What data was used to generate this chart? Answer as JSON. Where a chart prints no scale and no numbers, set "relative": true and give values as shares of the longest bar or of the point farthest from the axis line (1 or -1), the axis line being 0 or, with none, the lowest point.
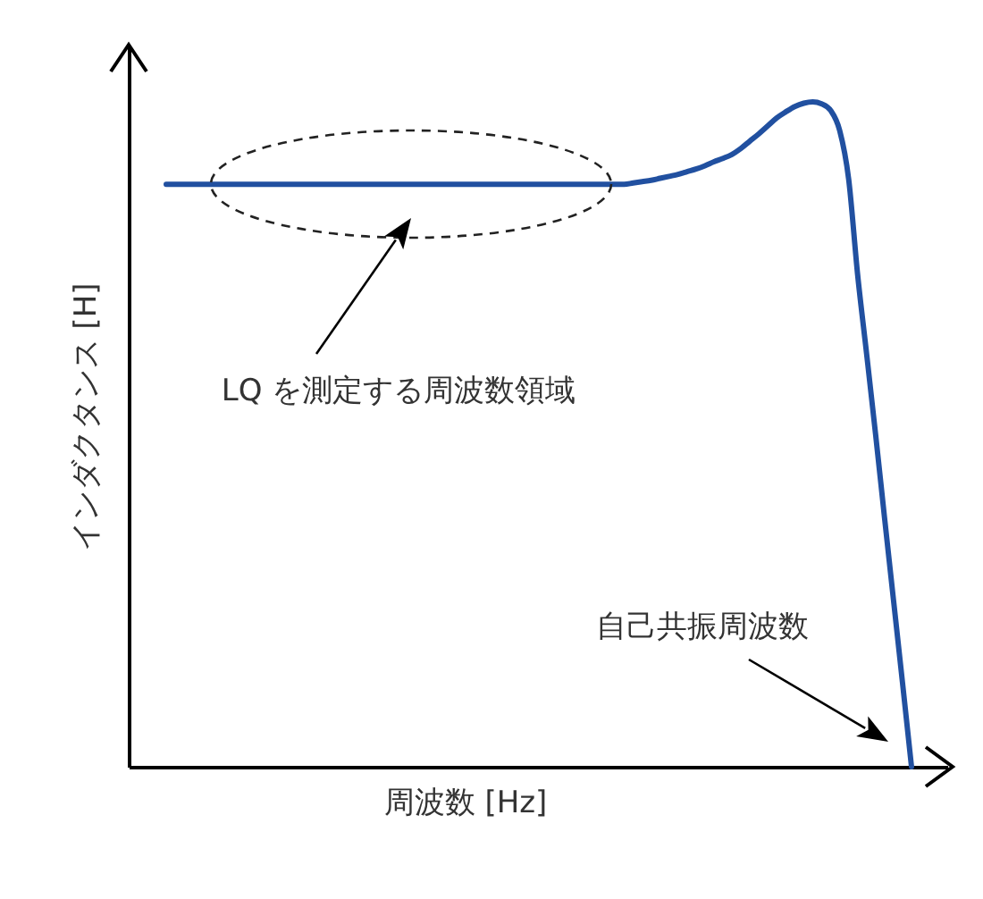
{
  "chart_data": {
    "type": "line",
    "xlabel": "周波数 [Hz]",
    "ylabel": "インダクタンス [H]",
    "annotations": [
      "LQ を測定する周波数領域",
      "自己共振周波数"
    ],
    "relative": true,
    "categories": [
      null,
      null,
      null,
      null,
      null,
      null,
      null,
      null,
      null,
      null,
      null,
      null,
      null,
      null,
      null,
      null,
      null,
      null,
      null,
      null,
      null,
      null,
      null,
      null,
      null,
      null,
      null,
      null,
      null,
      null,
      null,
      null,
      null,
      null,
      null,
      null,
      null,
      null,
      null,
      null,
      null,
      null,
      null,
      null,
      null,
      null,
      null,
      null,
      null,
      null,
      null,
      null,
      null,
      null,
      null,
      null,
      null,
      null,
      null,
      null,
      null,
      null,
      null,
      null,
      null,
      null,
      null,
      null,
      null,
      null,
      null,
      null,
      null,
      null,
      null,
      null,
      null,
      null,
      null,
      null,
      null,
      null,
      null,
      null
    ],
    "series": [
      {
        "color": "#2150a0",
        "values": [
          0.876,
          0.876,
          0.876,
          0.876,
          0.876,
          0.876,
          0.876,
          0.876,
          0.876,
          0.876,
          0.876,
          0.876,
          0.876,
          0.876,
          0.876,
          0.876,
          0.876,
          0.876,
          0.876,
          0.876,
          0.876,
          0.876,
          0.876,
          0.876,
          0.876,
          0.876,
          0.876,
          0.876,
          0.876,
          0.876,
          0.876,
          0.876,
          0.876,
          0.876,
          0.876,
          0.876,
          0.876,
          0.876,
          0.876,
          0.876,
          0.876,
          0.876,
          0.876,
          0.876,
          0.876,
          0.876,
          0.876,
          0.876,
          0.876,
          0.876,
          0.876,
          0.876,
          0.878,
          0.88,
          0.882,
          0.885,
          0.888,
          0.891,
          0.895,
          0.899,
          0.904,
          0.91,
          0.915,
          0.921,
          0.93,
          0.941,
          0.952,
          0.964,
          0.976,
          0.985,
          0.993,
          0.998,
          1.0,
          0.997,
          0.987,
          0.957,
          0.884,
          0.74,
          0.621,
          0.5,
          0.374,
          0.25,
          0.126,
          0
        ]
      }
    ]
  }
}
